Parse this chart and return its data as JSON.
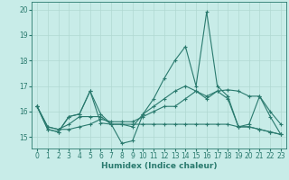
{
  "xlabel": "Humidex (Indice chaleur)",
  "background_color": "#c8ece8",
  "grid_color": "#b0d8d2",
  "line_color": "#2a7a6e",
  "xlim": [
    -0.5,
    23.5
  ],
  "ylim": [
    14.55,
    20.3
  ],
  "yticks": [
    15,
    16,
    17,
    18,
    19,
    20
  ],
  "xticks": [
    0,
    1,
    2,
    3,
    4,
    5,
    6,
    7,
    8,
    9,
    10,
    11,
    12,
    13,
    14,
    15,
    16,
    17,
    18,
    19,
    20,
    21,
    22,
    23
  ],
  "series": [
    [
      16.2,
      15.3,
      15.2,
      15.8,
      15.9,
      16.8,
      15.9,
      15.5,
      14.75,
      14.85,
      15.9,
      16.5,
      17.3,
      18.0,
      18.55,
      17.0,
      19.9,
      17.0,
      16.6,
      15.4,
      15.5,
      16.6,
      15.8,
      15.1
    ],
    [
      16.2,
      15.3,
      15.2,
      15.8,
      15.9,
      16.8,
      15.55,
      15.5,
      15.5,
      15.4,
      15.9,
      16.2,
      16.5,
      16.8,
      17.0,
      16.8,
      16.6,
      16.8,
      16.85,
      16.8,
      16.6,
      16.6,
      16.0,
      15.5
    ],
    [
      16.2,
      15.4,
      15.3,
      15.3,
      15.4,
      15.5,
      15.7,
      15.6,
      15.6,
      15.6,
      15.8,
      16.0,
      16.2,
      16.2,
      16.5,
      16.8,
      16.5,
      16.8,
      16.5,
      15.4,
      15.4,
      15.3,
      15.2,
      15.1
    ],
    [
      16.2,
      15.4,
      15.3,
      15.5,
      15.8,
      15.8,
      15.8,
      15.5,
      15.5,
      15.5,
      15.5,
      15.5,
      15.5,
      15.5,
      15.5,
      15.5,
      15.5,
      15.5,
      15.5,
      15.4,
      15.4,
      15.3,
      15.2,
      15.1
    ]
  ],
  "tick_fontsize": 5.5,
  "xlabel_fontsize": 6.5
}
